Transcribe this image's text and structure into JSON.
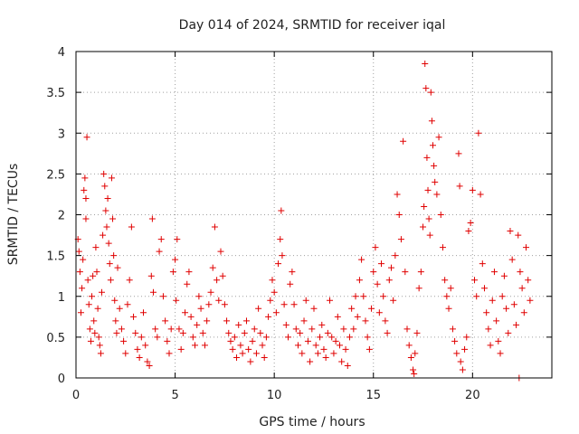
{
  "chart_data": {
    "type": "scatter",
    "title": "Day 014 of 2024, SRMTID for receiver iqal",
    "xlabel": "GPS time / hours",
    "ylabel": "SRMTID / TECUs",
    "xlim": [
      0,
      24
    ],
    "ylim": [
      0,
      4
    ],
    "xticks": [
      0,
      5,
      10,
      15,
      20
    ],
    "xtick_labels": [
      "0",
      "5",
      "10",
      "15",
      "20"
    ],
    "yticks": [
      0,
      0.5,
      1,
      1.5,
      2,
      2.5,
      3,
      3.5,
      4
    ],
    "ytick_labels": [
      "0",
      "0.5",
      "1",
      "1.5",
      "2",
      "2.5",
      "3",
      "3.5",
      "4"
    ],
    "grid": true,
    "marker": "+",
    "color": "#e00000",
    "series": [
      {
        "name": "SRMTID",
        "points": [
          [
            0.1,
            1.7
          ],
          [
            0.15,
            1.55
          ],
          [
            0.2,
            1.3
          ],
          [
            0.25,
            0.8
          ],
          [
            0.3,
            1.1
          ],
          [
            0.35,
            1.45
          ],
          [
            0.4,
            2.3
          ],
          [
            0.45,
            2.45
          ],
          [
            0.5,
            2.2
          ],
          [
            0.5,
            1.95
          ],
          [
            0.55,
            2.95
          ],
          [
            0.6,
            1.2
          ],
          [
            0.65,
            0.9
          ],
          [
            0.7,
            0.6
          ],
          [
            0.75,
            0.45
          ],
          [
            0.8,
            1.0
          ],
          [
            0.85,
            1.25
          ],
          [
            0.9,
            0.7
          ],
          [
            0.95,
            0.55
          ],
          [
            1.0,
            1.6
          ],
          [
            1.05,
            1.3
          ],
          [
            1.1,
            0.85
          ],
          [
            1.15,
            0.5
          ],
          [
            1.2,
            0.4
          ],
          [
            1.25,
            0.3
          ],
          [
            1.3,
            1.05
          ],
          [
            1.35,
            1.75
          ],
          [
            1.4,
            2.5
          ],
          [
            1.45,
            2.35
          ],
          [
            1.5,
            2.05
          ],
          [
            1.55,
            1.85
          ],
          [
            1.6,
            2.2
          ],
          [
            1.65,
            1.65
          ],
          [
            1.7,
            1.4
          ],
          [
            1.75,
            1.2
          ],
          [
            1.8,
            2.45
          ],
          [
            1.85,
            1.95
          ],
          [
            1.9,
            1.5
          ],
          [
            1.95,
            0.95
          ],
          [
            2.0,
            0.7
          ],
          [
            2.05,
            0.55
          ],
          [
            2.1,
            1.35
          ],
          [
            2.2,
            0.85
          ],
          [
            2.3,
            0.6
          ],
          [
            2.4,
            0.45
          ],
          [
            2.5,
            0.3
          ],
          [
            2.6,
            0.9
          ],
          [
            2.7,
            1.2
          ],
          [
            2.8,
            1.85
          ],
          [
            2.9,
            0.75
          ],
          [
            3.0,
            0.55
          ],
          [
            3.1,
            0.35
          ],
          [
            3.2,
            0.25
          ],
          [
            3.3,
            0.5
          ],
          [
            3.4,
            0.8
          ],
          [
            3.5,
            0.4
          ],
          [
            3.6,
            0.2
          ],
          [
            3.7,
            0.15
          ],
          [
            3.8,
            1.25
          ],
          [
            3.85,
            1.95
          ],
          [
            3.9,
            1.05
          ],
          [
            4.0,
            0.6
          ],
          [
            4.1,
            0.5
          ],
          [
            4.2,
            1.55
          ],
          [
            4.3,
            1.7
          ],
          [
            4.4,
            1.0
          ],
          [
            4.5,
            0.7
          ],
          [
            4.6,
            0.45
          ],
          [
            4.7,
            0.3
          ],
          [
            4.8,
            0.6
          ],
          [
            4.9,
            1.3
          ],
          [
            5.0,
            1.45
          ],
          [
            5.05,
            0.95
          ],
          [
            5.1,
            1.7
          ],
          [
            5.2,
            0.6
          ],
          [
            5.3,
            0.35
          ],
          [
            5.4,
            0.55
          ],
          [
            5.5,
            0.8
          ],
          [
            5.6,
            1.15
          ],
          [
            5.7,
            1.3
          ],
          [
            5.8,
            0.75
          ],
          [
            5.9,
            0.5
          ],
          [
            6.0,
            0.4
          ],
          [
            6.1,
            0.65
          ],
          [
            6.2,
            1.0
          ],
          [
            6.3,
            0.85
          ],
          [
            6.4,
            0.55
          ],
          [
            6.5,
            0.4
          ],
          [
            6.6,
            0.7
          ],
          [
            6.7,
            0.9
          ],
          [
            6.8,
            1.05
          ],
          [
            6.9,
            1.35
          ],
          [
            7.0,
            1.85
          ],
          [
            7.1,
            1.2
          ],
          [
            7.2,
            0.95
          ],
          [
            7.3,
            1.55
          ],
          [
            7.4,
            1.25
          ],
          [
            7.5,
            0.9
          ],
          [
            7.6,
            0.7
          ],
          [
            7.7,
            0.55
          ],
          [
            7.8,
            0.45
          ],
          [
            7.9,
            0.35
          ],
          [
            8.0,
            0.5
          ],
          [
            8.1,
            0.25
          ],
          [
            8.2,
            0.65
          ],
          [
            8.3,
            0.4
          ],
          [
            8.4,
            0.3
          ],
          [
            8.5,
            0.55
          ],
          [
            8.6,
            0.7
          ],
          [
            8.7,
            0.35
          ],
          [
            8.8,
            0.2
          ],
          [
            8.9,
            0.45
          ],
          [
            9.0,
            0.6
          ],
          [
            9.1,
            0.3
          ],
          [
            9.2,
            0.85
          ],
          [
            9.3,
            0.55
          ],
          [
            9.4,
            0.4
          ],
          [
            9.5,
            0.25
          ],
          [
            9.6,
            0.5
          ],
          [
            9.7,
            0.75
          ],
          [
            9.8,
            0.95
          ],
          [
            9.9,
            1.2
          ],
          [
            10.0,
            1.05
          ],
          [
            10.1,
            0.8
          ],
          [
            10.2,
            1.4
          ],
          [
            10.3,
            1.7
          ],
          [
            10.35,
            2.05
          ],
          [
            10.4,
            1.5
          ],
          [
            10.5,
            0.9
          ],
          [
            10.6,
            0.65
          ],
          [
            10.7,
            0.5
          ],
          [
            10.8,
            1.15
          ],
          [
            10.9,
            1.3
          ],
          [
            11.0,
            0.9
          ],
          [
            11.1,
            0.6
          ],
          [
            11.2,
            0.4
          ],
          [
            11.3,
            0.55
          ],
          [
            11.4,
            0.3
          ],
          [
            11.5,
            0.7
          ],
          [
            11.6,
            0.95
          ],
          [
            11.7,
            0.45
          ],
          [
            11.8,
            0.2
          ],
          [
            11.9,
            0.6
          ],
          [
            12.0,
            0.85
          ],
          [
            12.1,
            0.4
          ],
          [
            12.2,
            0.3
          ],
          [
            12.3,
            0.5
          ],
          [
            12.4,
            0.65
          ],
          [
            12.5,
            0.35
          ],
          [
            12.6,
            0.25
          ],
          [
            12.7,
            0.55
          ],
          [
            12.8,
            0.95
          ],
          [
            12.9,
            0.5
          ],
          [
            13.0,
            0.3
          ],
          [
            13.1,
            0.45
          ],
          [
            13.2,
            0.75
          ],
          [
            13.3,
            0.4
          ],
          [
            13.4,
            0.2
          ],
          [
            13.5,
            0.6
          ],
          [
            13.6,
            0.35
          ],
          [
            13.7,
            0.15
          ],
          [
            13.8,
            0.5
          ],
          [
            13.9,
            0.85
          ],
          [
            14.0,
            0.6
          ],
          [
            14.1,
            1.0
          ],
          [
            14.2,
            0.75
          ],
          [
            14.3,
            1.2
          ],
          [
            14.4,
            1.45
          ],
          [
            14.5,
            1.0
          ],
          [
            14.6,
            0.7
          ],
          [
            14.7,
            0.5
          ],
          [
            14.8,
            0.35
          ],
          [
            14.9,
            0.85
          ],
          [
            15.0,
            1.3
          ],
          [
            15.1,
            1.6
          ],
          [
            15.2,
            1.15
          ],
          [
            15.3,
            0.8
          ],
          [
            15.4,
            1.4
          ],
          [
            15.5,
            1.0
          ],
          [
            15.6,
            0.7
          ],
          [
            15.7,
            0.55
          ],
          [
            15.8,
            1.2
          ],
          [
            15.9,
            1.35
          ],
          [
            16.0,
            0.95
          ],
          [
            16.1,
            1.5
          ],
          [
            16.2,
            2.25
          ],
          [
            16.3,
            2.0
          ],
          [
            16.4,
            1.7
          ],
          [
            16.5,
            2.9
          ],
          [
            16.6,
            1.3
          ],
          [
            16.7,
            0.6
          ],
          [
            16.8,
            0.4
          ],
          [
            16.9,
            0.25
          ],
          [
            17.0,
            0.1
          ],
          [
            17.05,
            0.05
          ],
          [
            17.1,
            0.3
          ],
          [
            17.2,
            0.55
          ],
          [
            17.3,
            1.1
          ],
          [
            17.4,
            1.3
          ],
          [
            17.5,
            1.85
          ],
          [
            17.55,
            2.1
          ],
          [
            17.6,
            3.85
          ],
          [
            17.65,
            3.55
          ],
          [
            17.7,
            2.7
          ],
          [
            17.75,
            2.3
          ],
          [
            17.8,
            1.95
          ],
          [
            17.85,
            1.75
          ],
          [
            17.9,
            3.5
          ],
          [
            17.95,
            3.15
          ],
          [
            18.0,
            2.85
          ],
          [
            18.05,
            2.6
          ],
          [
            18.1,
            2.4
          ],
          [
            18.2,
            2.25
          ],
          [
            18.3,
            2.95
          ],
          [
            18.4,
            2.0
          ],
          [
            18.5,
            1.6
          ],
          [
            18.6,
            1.2
          ],
          [
            18.7,
            1.0
          ],
          [
            18.8,
            0.85
          ],
          [
            18.9,
            1.1
          ],
          [
            19.0,
            0.6
          ],
          [
            19.1,
            0.45
          ],
          [
            19.2,
            0.3
          ],
          [
            19.3,
            2.75
          ],
          [
            19.35,
            2.35
          ],
          [
            19.4,
            0.2
          ],
          [
            19.5,
            0.1
          ],
          [
            19.6,
            0.35
          ],
          [
            19.7,
            0.5
          ],
          [
            19.8,
            1.8
          ],
          [
            19.9,
            1.9
          ],
          [
            20.0,
            2.3
          ],
          [
            20.1,
            1.2
          ],
          [
            20.2,
            1.0
          ],
          [
            20.3,
            3.0
          ],
          [
            20.4,
            2.25
          ],
          [
            20.5,
            1.4
          ],
          [
            20.6,
            1.1
          ],
          [
            20.7,
            0.8
          ],
          [
            20.8,
            0.6
          ],
          [
            20.9,
            0.4
          ],
          [
            21.0,
            0.95
          ],
          [
            21.1,
            1.3
          ],
          [
            21.2,
            0.7
          ],
          [
            21.3,
            0.45
          ],
          [
            21.4,
            0.3
          ],
          [
            21.5,
            1.0
          ],
          [
            21.6,
            1.25
          ],
          [
            21.7,
            0.85
          ],
          [
            21.8,
            0.55
          ],
          [
            21.9,
            1.8
          ],
          [
            22.0,
            1.45
          ],
          [
            22.1,
            0.9
          ],
          [
            22.2,
            0.65
          ],
          [
            22.3,
            1.75
          ],
          [
            22.35,
            0.0
          ],
          [
            22.4,
            1.3
          ],
          [
            22.5,
            1.1
          ],
          [
            22.6,
            0.8
          ],
          [
            22.7,
            1.6
          ],
          [
            22.8,
            1.2
          ],
          [
            22.9,
            0.95
          ]
        ]
      }
    ]
  }
}
